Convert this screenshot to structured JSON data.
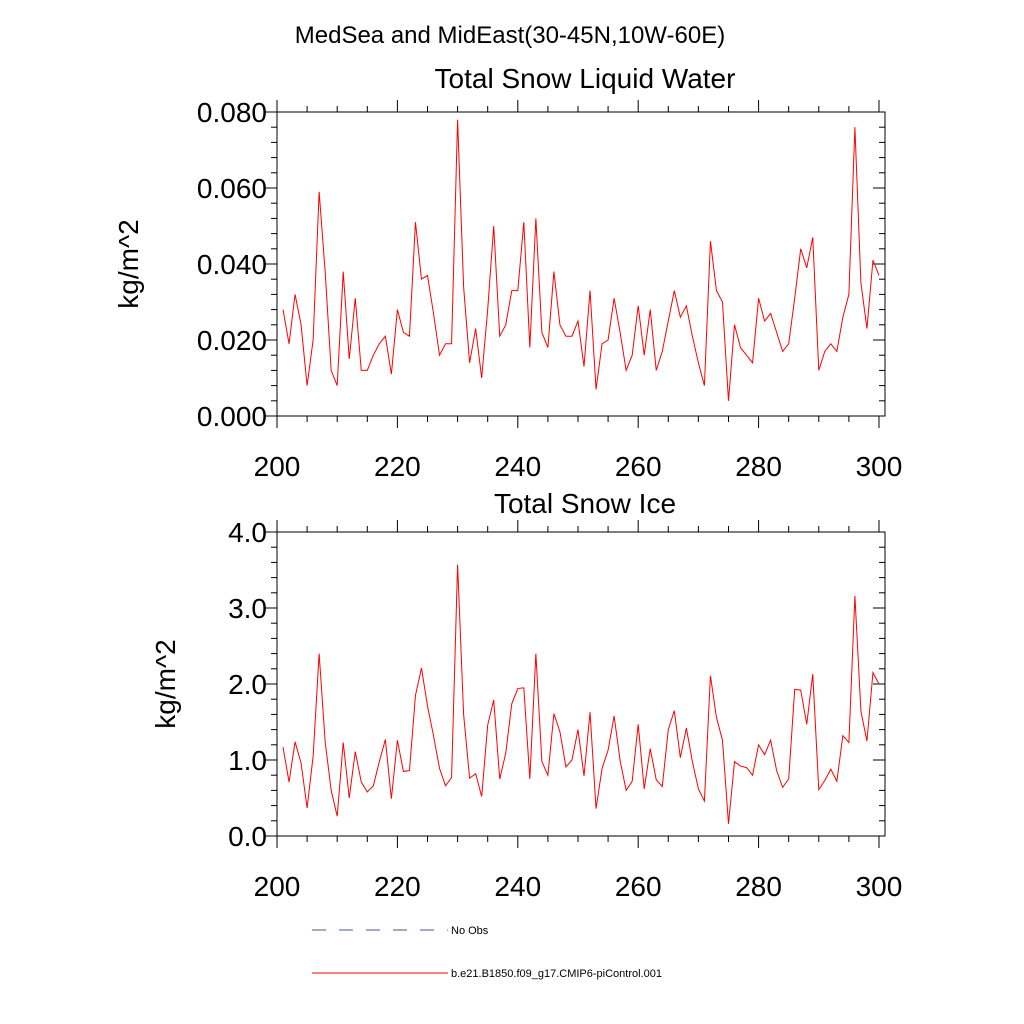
{
  "figure": {
    "suptitle": "MedSea and MidEast(30-45N,10W-60E)"
  },
  "colors": {
    "series": "#ff0000",
    "obs": "#4a5a8a",
    "axis": "#000000"
  },
  "legend": {
    "items": [
      {
        "label": "No Obs",
        "style": "dashed",
        "color": "#4a5a8a"
      },
      {
        "label": "b.e21.B1850.f09_g17.CMIP6-piControl.001",
        "style": "solid",
        "color": "#ff0000"
      }
    ]
  },
  "chart_data": [
    {
      "type": "line",
      "title": "Total Snow Liquid Water",
      "xlabel": "",
      "ylabel": "kg/m^2",
      "xlim": [
        200,
        301
      ],
      "ylim": [
        0.0,
        0.08
      ],
      "xticks": [
        200,
        220,
        240,
        260,
        280,
        300
      ],
      "xtick_labels": [
        "200",
        "220",
        "240",
        "260",
        "280",
        "300"
      ],
      "yticks": [
        0.0,
        0.02,
        0.04,
        0.06,
        0.08
      ],
      "ytick_labels": [
        "0.000",
        "0.020",
        "0.040",
        "0.060",
        "0.080"
      ],
      "yminor_step": 0.004,
      "series": [
        {
          "name": "b.e21.B1850.f09_g17.CMIP6-piControl.001",
          "x_start": 201,
          "x_step": 1,
          "values": [
            0.028,
            0.019,
            0.032,
            0.024,
            0.008,
            0.02,
            0.059,
            0.038,
            0.012,
            0.008,
            0.038,
            0.015,
            0.031,
            0.012,
            0.012,
            0.016,
            0.019,
            0.021,
            0.011,
            0.028,
            0.022,
            0.021,
            0.051,
            0.036,
            0.037,
            0.027,
            0.016,
            0.019,
            0.019,
            0.078,
            0.034,
            0.014,
            0.023,
            0.01,
            0.028,
            0.05,
            0.021,
            0.024,
            0.033,
            0.033,
            0.051,
            0.018,
            0.052,
            0.022,
            0.018,
            0.038,
            0.024,
            0.021,
            0.021,
            0.025,
            0.013,
            0.033,
            0.007,
            0.019,
            0.02,
            0.031,
            0.022,
            0.012,
            0.016,
            0.029,
            0.016,
            0.028,
            0.012,
            0.017,
            0.025,
            0.033,
            0.026,
            0.029,
            0.021,
            0.014,
            0.008,
            0.046,
            0.033,
            0.03,
            0.004,
            0.024,
            0.018,
            0.016,
            0.014,
            0.031,
            0.025,
            0.027,
            0.022,
            0.017,
            0.019,
            0.031,
            0.044,
            0.039,
            0.047,
            0.012,
            0.017,
            0.019,
            0.017,
            0.026,
            0.032,
            0.076,
            0.035,
            0.023,
            0.041,
            0.037
          ]
        }
      ]
    },
    {
      "type": "line",
      "title": "Total Snow Ice",
      "xlabel": "",
      "ylabel": "kg/m^2",
      "xlim": [
        200,
        301
      ],
      "ylim": [
        0.0,
        4.0
      ],
      "xticks": [
        200,
        220,
        240,
        260,
        280,
        300
      ],
      "xtick_labels": [
        "200",
        "220",
        "240",
        "260",
        "280",
        "300"
      ],
      "yticks": [
        0.0,
        1.0,
        2.0,
        3.0,
        4.0
      ],
      "ytick_labels": [
        "0.0",
        "1.0",
        "2.0",
        "3.0",
        "4.0"
      ],
      "yminor_step": 0.2,
      "series": [
        {
          "name": "b.e21.B1850.f09_g17.CMIP6-piControl.001",
          "x_start": 201,
          "x_step": 1,
          "values": [
            1.17,
            0.71,
            1.24,
            0.96,
            0.37,
            1.05,
            2.4,
            1.24,
            0.6,
            0.26,
            1.23,
            0.5,
            1.11,
            0.71,
            0.58,
            0.66,
            0.98,
            1.27,
            0.49,
            1.26,
            0.85,
            0.86,
            1.85,
            2.21,
            1.71,
            1.32,
            0.89,
            0.66,
            0.77,
            3.57,
            1.6,
            0.76,
            0.82,
            0.52,
            1.46,
            1.79,
            0.75,
            1.09,
            1.74,
            1.94,
            1.95,
            0.75,
            2.4,
            0.98,
            0.8,
            1.61,
            1.37,
            0.91,
            1.0,
            1.4,
            0.79,
            1.63,
            0.36,
            0.89,
            1.13,
            1.58,
            0.99,
            0.6,
            0.72,
            1.47,
            0.62,
            1.15,
            0.74,
            0.65,
            1.4,
            1.65,
            1.03,
            1.42,
            0.98,
            0.62,
            0.46,
            2.11,
            1.56,
            1.26,
            0.16,
            0.98,
            0.92,
            0.9,
            0.8,
            1.2,
            1.07,
            1.26,
            0.86,
            0.64,
            0.75,
            1.93,
            1.92,
            1.47,
            2.13,
            0.61,
            0.73,
            0.88,
            0.72,
            1.32,
            1.23,
            3.16,
            1.64,
            1.25,
            2.15,
            2.0
          ]
        }
      ]
    }
  ]
}
